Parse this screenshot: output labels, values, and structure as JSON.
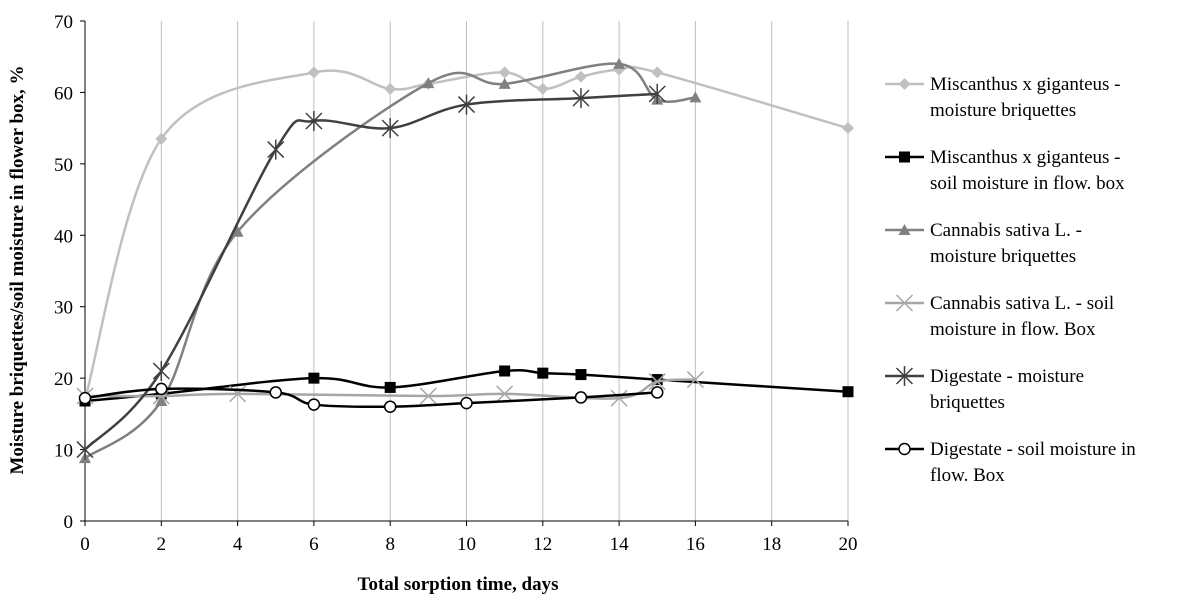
{
  "chart_data": {
    "type": "line",
    "xlabel": "Total sorption time, days",
    "ylabel": "Moisture briquettes/soil moisture in flower box, %",
    "xlim": [
      0,
      20
    ],
    "ylim": [
      0,
      70
    ],
    "xticks": [
      0,
      2,
      4,
      6,
      8,
      10,
      12,
      14,
      16,
      18,
      20
    ],
    "yticks": [
      0,
      10,
      20,
      30,
      40,
      50,
      60,
      70
    ],
    "grid": "vertical",
    "legend_position": "right",
    "series": [
      {
        "name_lines": [
          "Miscanthus x giganteus -",
          "moisture briquettes"
        ],
        "color": "#c0c0c0",
        "marker": "diamond",
        "x": [
          0,
          2,
          6,
          8,
          9,
          11,
          12,
          13,
          14,
          15,
          20
        ],
        "y": [
          17,
          53.5,
          62.8,
          60.5,
          61.2,
          62.8,
          60.5,
          62.2,
          63.2,
          62.8,
          55
        ]
      },
      {
        "name_lines": [
          "Miscanthus x giganteus -",
          "soil moisture in flow. box"
        ],
        "color": "#000000",
        "marker": "square",
        "x": [
          0,
          2,
          6,
          8,
          11,
          12,
          13,
          15,
          20
        ],
        "y": [
          16.8,
          17.8,
          20,
          18.7,
          21,
          20.7,
          20.5,
          19.8,
          18.1
        ]
      },
      {
        "name_lines": [
          "Cannabis sativa L. -",
          "moisture briquettes"
        ],
        "color": "#808080",
        "marker": "triangle",
        "x": [
          0,
          2,
          4,
          9,
          11,
          14,
          15,
          16
        ],
        "y": [
          8.8,
          16.8,
          40.5,
          61.3,
          61.2,
          64,
          59,
          59.3
        ]
      },
      {
        "name_lines": [
          "Cannabis sativa L. - soil",
          "moisture in flow. Box"
        ],
        "color": "#a6a6a6",
        "marker": "x",
        "x": [
          0,
          2,
          4,
          9,
          11,
          14,
          15,
          16
        ],
        "y": [
          17.5,
          17.5,
          17.8,
          17.5,
          17.8,
          17.2,
          19.5,
          19.8
        ]
      },
      {
        "name_lines": [
          "Digestate - moisture",
          "briquettes"
        ],
        "color": "#404040",
        "marker": "star",
        "x": [
          0,
          2,
          5,
          6,
          8,
          10,
          13,
          15
        ],
        "y": [
          10,
          21,
          52,
          56,
          55,
          58.3,
          59.2,
          59.8
        ]
      },
      {
        "name_lines": [
          "Digestate - soil moisture in",
          "flow. Box"
        ],
        "color": "#000000",
        "marker": "circle",
        "x": [
          0,
          2,
          5,
          6,
          8,
          10,
          13,
          15
        ],
        "y": [
          17.2,
          18.5,
          18,
          16.3,
          16,
          16.5,
          17.3,
          18
        ]
      }
    ]
  }
}
